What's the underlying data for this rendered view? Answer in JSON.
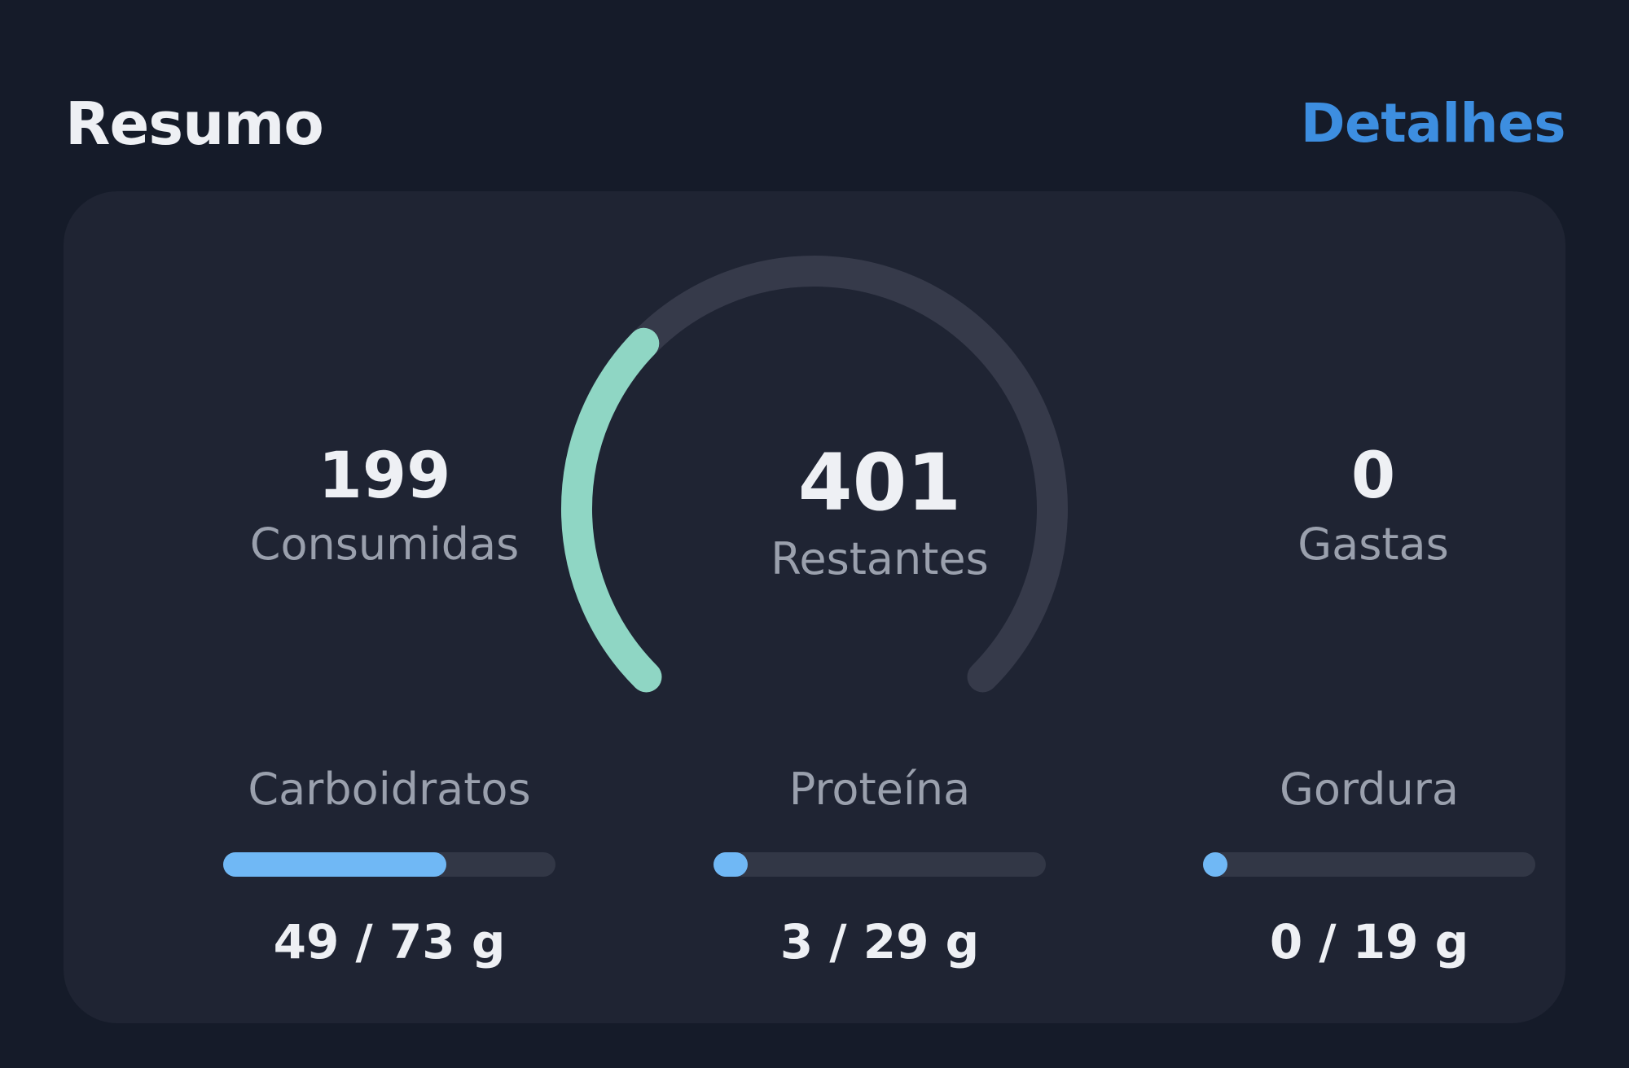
{
  "header": {
    "title": "Resumo",
    "details_label": "Detalhes"
  },
  "summary": {
    "consumed": {
      "value": "199",
      "label": "Consumidas"
    },
    "remaining": {
      "value": "401",
      "label": "Restantes"
    },
    "burned": {
      "value": "0",
      "label": "Gastas"
    },
    "gauge": {
      "consumed_fraction": 0.33,
      "progress_color": "#8fd6c4",
      "track_color": "#363a4a"
    }
  },
  "macros": [
    {
      "label": "Carboidratos",
      "amount": "49 / 73 g",
      "consumed": 49,
      "goal": 73
    },
    {
      "label": "Proteína",
      "amount": "3 / 29 g",
      "consumed": 3,
      "goal": 29
    },
    {
      "label": "Gordura",
      "amount": "0 / 19 g",
      "consumed": 0,
      "goal": 19
    }
  ],
  "colors": {
    "background": "#151b29",
    "card": "#1f2433",
    "accent": "#3d8ee0",
    "macro_fill": "#70b8f5"
  }
}
